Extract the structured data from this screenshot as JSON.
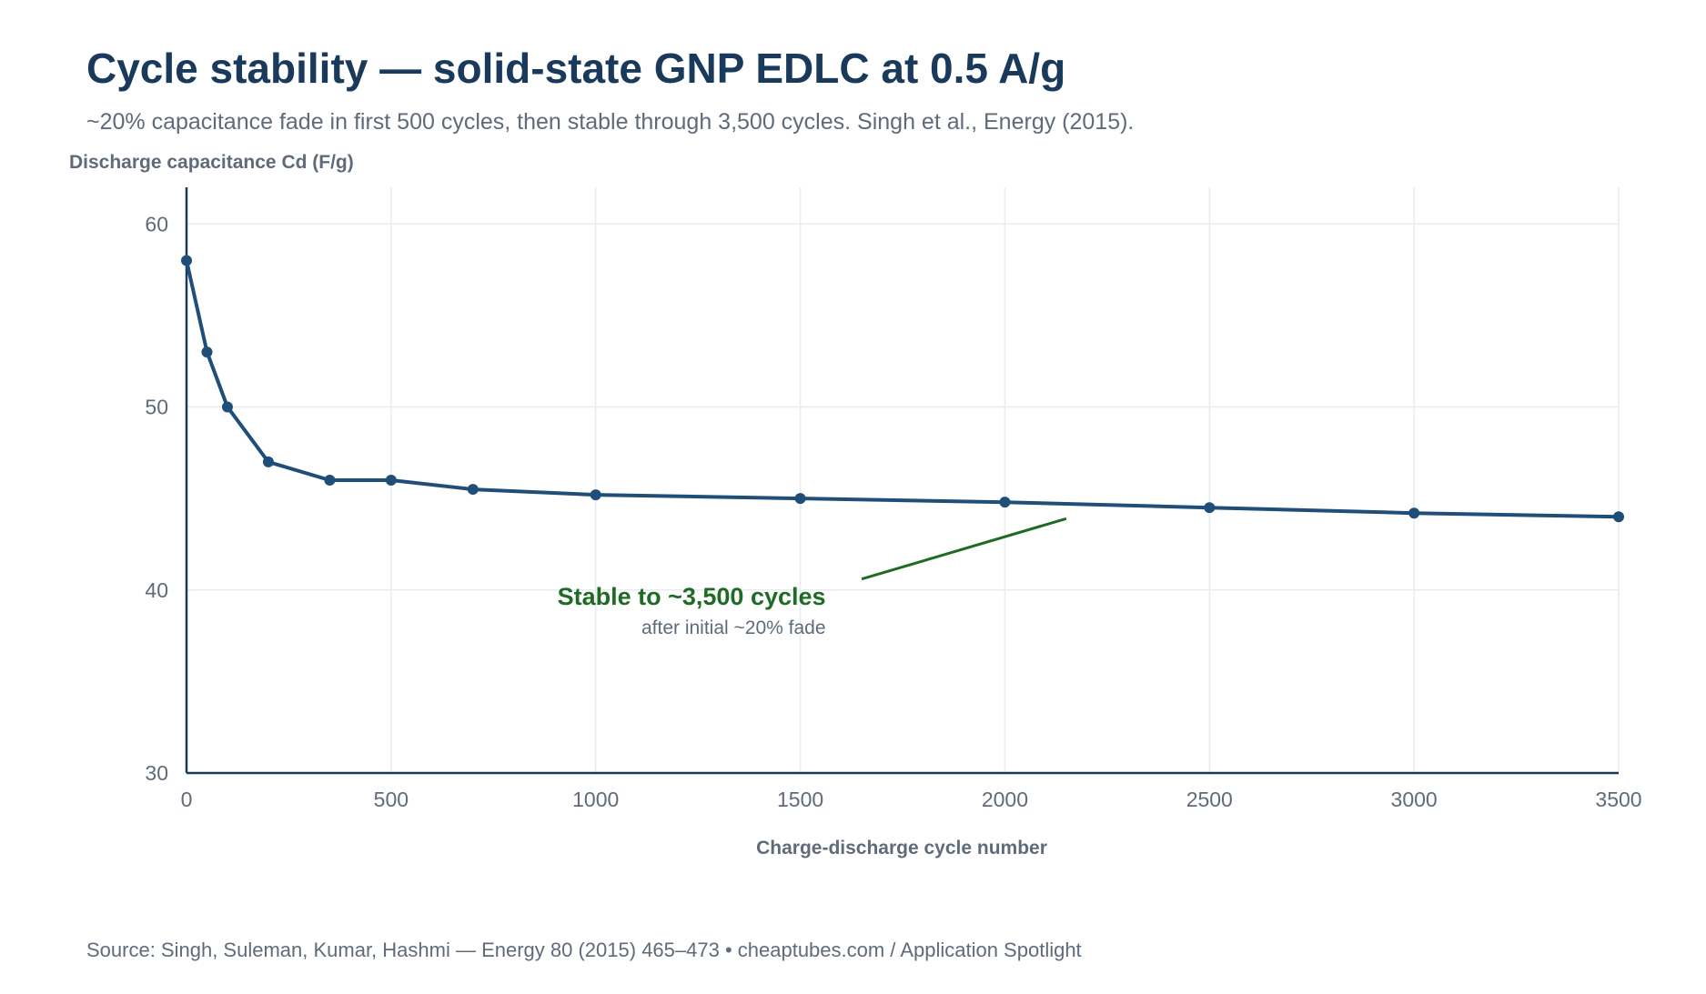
{
  "title": "Cycle stability — solid-state GNP EDLC at 0.5 A/g",
  "subtitle": "~20% capacitance fade in first 500 cycles, then stable through 3,500 cycles. Singh et al., Energy (2015).",
  "source": "Source: Singh, Suleman, Kumar, Hashmi — Energy 80 (2015) 465–473 • cheaptubes.com / Application Spotlight",
  "colors": {
    "title": "#1a3a5c",
    "series": "#1f4e79",
    "annotation": "#1f6b24",
    "muted": "#5f6b7a",
    "grid": "#e9ecef",
    "axis": "#1a3a5c"
  },
  "chart_data": {
    "type": "line",
    "title": "Cycle stability — solid-state GNP EDLC at 0.5 A/g",
    "subtitle": "~20% capacitance fade in first 500 cycles, then stable through 3,500 cycles. Singh et al., Energy (2015).",
    "xlabel": "Charge-discharge cycle number",
    "ylabel": "Discharge capacitance Cd (F/g)",
    "xlim": [
      0,
      3500
    ],
    "ylim": [
      30,
      62
    ],
    "xticks": [
      0,
      500,
      1000,
      1500,
      2000,
      2500,
      3000,
      3500
    ],
    "xtick_labels": [
      "0",
      "500",
      "1000",
      "1500",
      "2000",
      "2500",
      "3000",
      "3500"
    ],
    "yticks": [
      30,
      40,
      50,
      60
    ],
    "ytick_labels": [
      "30",
      "40",
      "50",
      "60"
    ],
    "grid": true,
    "legend": "none",
    "series": [
      {
        "x": [
          0,
          50,
          100,
          200,
          350,
          500,
          700,
          1000,
          1500,
          2000,
          2500,
          3000,
          3500
        ],
        "y": [
          58,
          53,
          50,
          47,
          46,
          46,
          45.5,
          45.2,
          45,
          44.8,
          44.5,
          44.2,
          44
        ]
      }
    ],
    "annotations": [
      {
        "text": "Stable to ~3,500 cycles",
        "subtext": "after initial ~20% fade",
        "text_at": [
          1600,
          40
        ],
        "arrow_from": [
          1650,
          40.6
        ],
        "arrow_to": [
          2150,
          43.9
        ]
      }
    ]
  }
}
